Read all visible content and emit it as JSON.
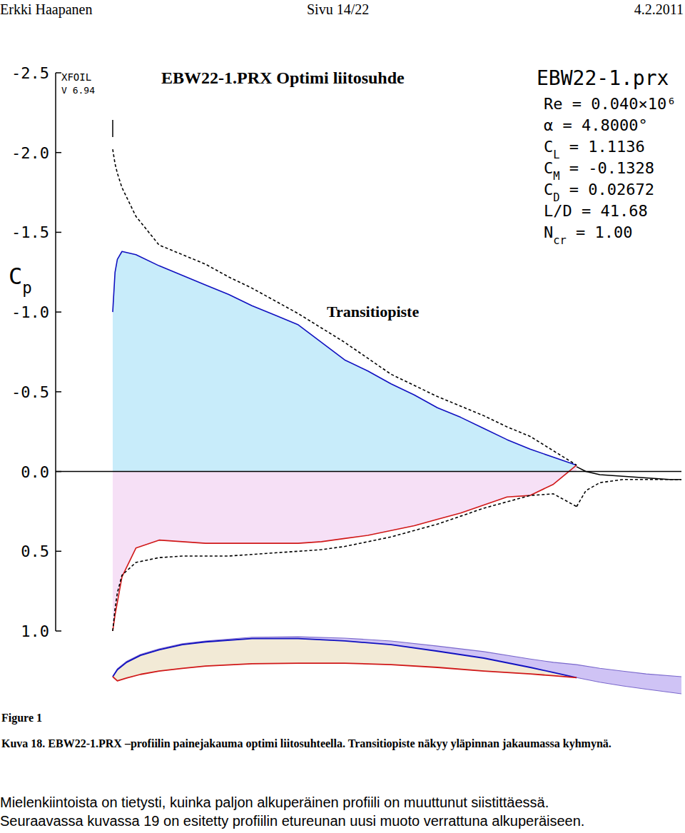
{
  "page": {
    "header": [
      "Erkki Haapanen",
      "Sivu 14/22",
      "4.2.2011"
    ],
    "figure_label": "Figure 1",
    "caption": "Kuva 18. EBW22-1.PRX –profiilin painejakauma optimi liitosuhteella. Transitiopiste näkyy yläpinnan jakaumassa kyhmynä.",
    "body": [
      "Mielenkiintoista on tietysti, kuinka paljon alkuperäinen profiili on muuttunut siistittäessä.",
      "Seuraavassa kuvassa 19 on esitetty profiilin etureunan uusi muoto verrattuna alkuperäiseen."
    ]
  },
  "chart_data": [
    {
      "type": "line",
      "title": "EBW22-1.PRX Optimi liitosuhde",
      "ylabel": "Cp",
      "annotations": [
        "XFOIL",
        "V 6.94",
        "EBW22-1.prx",
        "Re = 0.040×10⁶",
        "α = 4.8000°",
        "CL = 1.1136",
        "CM = -0.1328",
        "CD = 0.02672",
        "L/D = 41.68",
        "Ncr = 1.00",
        "Transitiopiste"
      ],
      "xlim": [
        -0.123,
        1.226
      ],
      "ylim": [
        1.0,
        -2.5
      ],
      "yticks": [
        -2.5,
        {
          "value": -2,
          "label": "-2.0"
        },
        -1.5,
        {
          "value": -1,
          "label": "-1.0"
        },
        -0.5,
        {
          "value": 0,
          "label": "0.0"
        },
        0.5,
        {
          "value": 1,
          "label": "1.0"
        }
      ],
      "grid": false,
      "tick_labels": "y",
      "x": [
        0,
        0.005,
        0.01,
        0.02,
        0.05,
        0.1,
        0.15,
        0.2,
        0.25,
        0.3,
        0.35,
        0.4,
        0.45,
        0.5,
        0.55,
        0.6,
        0.65,
        0.7,
        0.75,
        0.8,
        0.85,
        0.9,
        0.95,
        1.0
      ],
      "series": [
        {
          "type": "area",
          "color": "#1010c0",
          "line_style": "solid",
          "values": [
            -1.0,
            -1.25,
            -1.33,
            -1.38,
            -1.36,
            -1.29,
            -1.23,
            -1.17,
            -1.11,
            -1.04,
            -0.98,
            -0.92,
            -0.81,
            -0.7,
            -0.63,
            -0.55,
            -0.48,
            -0.4,
            -0.34,
            -0.27,
            -0.2,
            -0.14,
            -0.09,
            -0.04
          ]
        },
        {
          "type": "area",
          "color": "#d01818",
          "line_style": "solid",
          "values": [
            1.0,
            0.9,
            0.82,
            0.66,
            0.48,
            0.43,
            0.44,
            0.45,
            0.45,
            0.45,
            0.45,
            0.45,
            0.44,
            0.42,
            0.4,
            0.37,
            0.34,
            0.3,
            0.26,
            0.21,
            0.16,
            0.15,
            0.08,
            -0.04
          ]
        },
        {
          "type": "line",
          "color": "#000000",
          "line_style": "dashed",
          "values": [
            -2.02,
            -1.93,
            -1.87,
            -1.78,
            -1.6,
            -1.42,
            -1.36,
            -1.3,
            -1.22,
            -1.15,
            -1.07,
            -0.99,
            -0.9,
            -0.81,
            -0.71,
            -0.61,
            -0.54,
            -0.47,
            -0.41,
            -0.35,
            -0.28,
            -0.22,
            -0.13,
            -0.04
          ]
        },
        {
          "type": "line",
          "color": "#000000",
          "line_style": "dashed",
          "values": [
            1.0,
            0.86,
            0.76,
            0.65,
            0.57,
            0.54,
            0.53,
            0.53,
            0.53,
            0.52,
            0.51,
            0.5,
            0.49,
            0.47,
            0.44,
            0.41,
            0.37,
            0.33,
            0.28,
            0.23,
            0.19,
            0.15,
            0.14,
            0.22
          ]
        },
        {
          "type": "line",
          "color": "#000000",
          "line_style": "solid",
          "x": [
            1.0,
            1.02,
            1.05,
            1.1,
            1.15,
            1.2,
            1.226
          ],
          "values": [
            -0.03,
            0.0,
            0.02,
            0.03,
            0.04,
            0.05,
            0.05
          ]
        },
        {
          "type": "line",
          "color": "#000000",
          "line_style": "dashed",
          "x": [
            1.0,
            1.02,
            1.05,
            1.1,
            1.15,
            1.2,
            1.226
          ],
          "values": [
            0.22,
            0.12,
            0.07,
            0.05,
            0.05,
            0.05,
            0.05
          ]
        }
      ]
    },
    {
      "type": "area",
      "xlim": [
        -0.123,
        1.226
      ],
      "ylim": [
        -0.04,
        0.09
      ],
      "tick_labels": false,
      "series": [
        {
          "color": "#1010c0",
          "x": [
            0,
            0.01,
            0.03,
            0.06,
            0.1,
            0.15,
            0.2,
            0.3,
            0.4,
            0.5,
            0.6,
            0.7,
            0.8,
            0.9,
            0.95,
            1.0
          ],
          "values": [
            0,
            0.015,
            0.031,
            0.046,
            0.058,
            0.069,
            0.075,
            0.082,
            0.082,
            0.077,
            0.069,
            0.055,
            0.04,
            0.02,
            0.009,
            -0.002
          ]
        },
        {
          "color": "#d01818",
          "x": [
            0,
            0.01,
            0.03,
            0.06,
            0.1,
            0.15,
            0.2,
            0.3,
            0.4,
            0.5,
            0.6,
            0.7,
            0.8,
            0.9,
            0.95,
            1.0
          ],
          "values": [
            0,
            -0.009,
            -0.003,
            0.005,
            0.012,
            0.018,
            0.023,
            0.028,
            0.029,
            0.029,
            0.026,
            0.02,
            0.012,
            0.006,
            0.002,
            -0.002
          ]
        },
        {
          "color": "#7a68cc",
          "x": [
            0,
            0.01,
            0.03,
            0.06,
            0.1,
            0.15,
            0.2,
            0.3,
            0.4,
            0.5,
            0.6,
            0.7,
            0.8,
            0.9,
            0.95,
            1.0,
            1.05,
            1.1,
            1.15,
            1.226
          ],
          "values": [
            0,
            0.017,
            0.033,
            0.048,
            0.06,
            0.071,
            0.077,
            0.085,
            0.086,
            0.083,
            0.077,
            0.066,
            0.054,
            0.038,
            0.031,
            0.026,
            0.018,
            0.012,
            0.006,
            0.0
          ]
        },
        {
          "color": "#7a68cc",
          "x": [
            1.0,
            1.05,
            1.1,
            1.15,
            1.226
          ],
          "values": [
            -0.002,
            -0.012,
            -0.02,
            -0.027,
            -0.037
          ]
        }
      ]
    }
  ]
}
